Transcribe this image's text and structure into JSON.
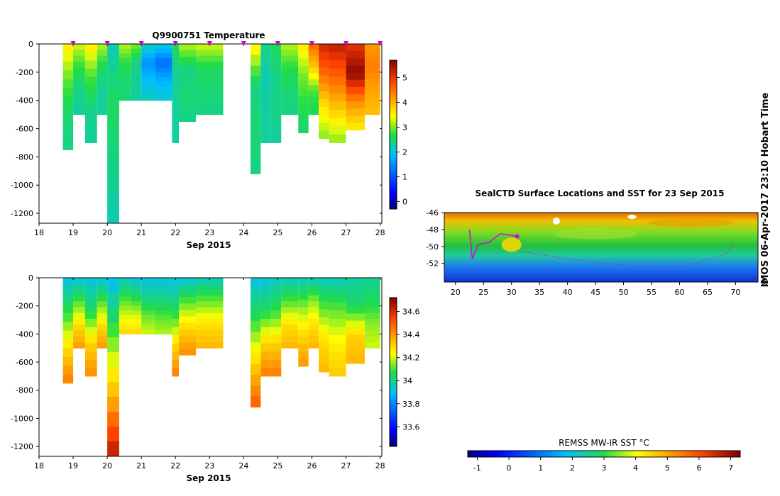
{
  "stamp": "IMOS 06-Apr-2017 23:10 Hobart Time",
  "stamp_symbol": "©",
  "chart_data": [
    {
      "id": "temperature",
      "type": "heatmap",
      "title": "Q9900751  Temperature",
      "xlabel": "Sep 2015",
      "ylabel": "",
      "xlim": [
        18,
        28.05
      ],
      "ylim": [
        -1270,
        0
      ],
      "x_ticks": [
        "18",
        "19",
        "20",
        "21",
        "22",
        "23",
        "24",
        "25",
        "26",
        "27",
        "28"
      ],
      "y_ticks": [
        "0",
        "-200",
        "-400",
        "-600",
        "-800",
        "-1000",
        "-1200"
      ],
      "colorbar": {
        "range": [
          -0.3,
          5.7
        ],
        "ticks": [
          "0",
          "1",
          "2",
          "3",
          "4",
          "5"
        ]
      },
      "profile_markers": [
        19,
        20,
        21,
        22,
        23,
        24,
        25,
        26,
        27,
        28
      ],
      "profiles": [
        {
          "x0": 18.7,
          "x1": 19.0,
          "depth": 750,
          "values": [
            3.6,
            2.9,
            2.5,
            2.4
          ]
        },
        {
          "x0": 19.0,
          "x1": 19.35,
          "depth": 500,
          "values": [
            3.3,
            2.7,
            2.4,
            2.3
          ]
        },
        {
          "x0": 19.35,
          "x1": 19.7,
          "depth": 700,
          "values": [
            3.6,
            2.8,
            2.4,
            2.3
          ]
        },
        {
          "x0": 19.7,
          "x1": 20.0,
          "depth": 500,
          "values": [
            3.2,
            2.6,
            2.3,
            2.3
          ]
        },
        {
          "x0": 20.0,
          "x1": 20.35,
          "depth": 1270,
          "values": [
            2.2,
            2.6,
            2.4,
            2.2
          ]
        },
        {
          "x0": 20.35,
          "x1": 20.7,
          "depth": 400,
          "values": [
            3.2,
            2.7,
            2.5,
            2.5
          ]
        },
        {
          "x0": 20.7,
          "x1": 21.0,
          "depth": 400,
          "values": [
            3.0,
            2.4,
            2.3,
            2.3
          ]
        },
        {
          "x0": 21.0,
          "x1": 21.4,
          "depth": 400,
          "values": [
            2.2,
            1.5,
            1.9,
            2.2
          ]
        },
        {
          "x0": 21.4,
          "x1": 21.9,
          "depth": 400,
          "values": [
            2.1,
            1.2,
            1.8,
            2.1
          ]
        },
        {
          "x0": 21.9,
          "x1": 22.1,
          "depth": 700,
          "values": [
            2.6,
            2.3,
            2.3,
            2.3
          ]
        },
        {
          "x0": 22.1,
          "x1": 22.6,
          "depth": 550,
          "values": [
            3.2,
            2.4,
            2.5,
            2.4
          ]
        },
        {
          "x0": 22.6,
          "x1": 23.4,
          "depth": 500,
          "values": [
            3.3,
            2.6,
            2.5,
            2.4
          ]
        },
        {
          "x0": 24.2,
          "x1": 24.5,
          "depth": 920,
          "values": [
            3.6,
            2.4,
            2.5,
            2.4
          ]
        },
        {
          "x0": 24.5,
          "x1": 24.8,
          "depth": 700,
          "values": [
            2.4,
            2.2,
            2.3,
            2.3
          ]
        },
        {
          "x0": 24.8,
          "x1": 25.1,
          "depth": 700,
          "values": [
            2.6,
            2.4,
            2.4,
            2.3
          ]
        },
        {
          "x0": 25.1,
          "x1": 25.6,
          "depth": 500,
          "values": [
            3.2,
            2.7,
            2.5,
            2.4
          ]
        },
        {
          "x0": 25.6,
          "x1": 25.9,
          "depth": 630,
          "values": [
            3.6,
            3.0,
            2.7,
            2.5
          ]
        },
        {
          "x0": 25.9,
          "x1": 26.2,
          "depth": 500,
          "values": [
            4.6,
            3.8,
            2.8,
            2.6
          ]
        },
        {
          "x0": 26.2,
          "x1": 26.5,
          "depth": 670,
          "values": [
            5.2,
            4.5,
            3.6,
            3.0
          ]
        },
        {
          "x0": 26.5,
          "x1": 27.0,
          "depth": 700,
          "values": [
            5.3,
            4.6,
            3.8,
            3.0
          ]
        },
        {
          "x0": 27.0,
          "x1": 27.55,
          "depth": 610,
          "values": [
            5.0,
            5.6,
            4.3,
            3.5
          ]
        },
        {
          "x0": 27.55,
          "x1": 28.0,
          "depth": 500,
          "values": [
            4.2,
            4.4,
            4.1,
            3.9
          ]
        }
      ]
    },
    {
      "id": "salinity",
      "type": "heatmap",
      "title": "",
      "xlabel": "Sep 2015",
      "ylabel": "",
      "xlim": [
        18,
        28.05
      ],
      "ylim": [
        -1270,
        0
      ],
      "x_ticks": [
        "18",
        "19",
        "20",
        "21",
        "22",
        "23",
        "24",
        "25",
        "26",
        "27",
        "28"
      ],
      "y_ticks": [
        "0",
        "-200",
        "-400",
        "-600",
        "-800",
        "-1000",
        "-1200"
      ],
      "colorbar": {
        "range": [
          33.43,
          34.72
        ],
        "ticks": [
          "33.6",
          "33.8",
          "34",
          "34.2",
          "34.4",
          "34.6"
        ]
      },
      "profiles": [
        {
          "x0": 18.7,
          "x1": 19.0,
          "depth": 750,
          "values": [
            33.92,
            34.08,
            34.28,
            34.45
          ]
        },
        {
          "x0": 19.0,
          "x1": 19.35,
          "depth": 500,
          "values": [
            33.92,
            34.1,
            34.28,
            34.4
          ]
        },
        {
          "x0": 19.35,
          "x1": 19.7,
          "depth": 700,
          "values": [
            33.92,
            34.05,
            34.3,
            34.42
          ]
        },
        {
          "x0": 19.7,
          "x1": 20.0,
          "depth": 500,
          "values": [
            33.92,
            34.1,
            34.28,
            34.4
          ]
        },
        {
          "x0": 20.0,
          "x1": 20.35,
          "depth": 1270,
          "values": [
            33.9,
            34.12,
            34.35,
            34.65
          ]
        },
        {
          "x0": 20.35,
          "x1": 20.7,
          "depth": 400,
          "values": [
            33.95,
            34.08,
            34.2,
            34.3
          ]
        },
        {
          "x0": 20.7,
          "x1": 21.0,
          "depth": 400,
          "values": [
            33.92,
            34.05,
            34.2,
            34.3
          ]
        },
        {
          "x0": 21.0,
          "x1": 21.4,
          "depth": 400,
          "values": [
            33.92,
            34.0,
            34.12,
            34.2
          ]
        },
        {
          "x0": 21.4,
          "x1": 21.9,
          "depth": 400,
          "values": [
            33.92,
            34.0,
            34.1,
            34.18
          ]
        },
        {
          "x0": 21.9,
          "x1": 22.1,
          "depth": 700,
          "values": [
            33.92,
            34.05,
            34.28,
            34.45
          ]
        },
        {
          "x0": 22.1,
          "x1": 22.6,
          "depth": 550,
          "values": [
            33.92,
            34.12,
            34.3,
            34.42
          ]
        },
        {
          "x0": 22.6,
          "x1": 23.4,
          "depth": 500,
          "values": [
            33.95,
            34.12,
            34.28,
            34.35
          ]
        },
        {
          "x0": 24.2,
          "x1": 24.5,
          "depth": 920,
          "values": [
            33.92,
            34.08,
            34.3,
            34.5
          ]
        },
        {
          "x0": 24.5,
          "x1": 24.8,
          "depth": 700,
          "values": [
            33.92,
            34.05,
            34.3,
            34.45
          ]
        },
        {
          "x0": 24.8,
          "x1": 25.1,
          "depth": 700,
          "values": [
            33.95,
            34.08,
            34.3,
            34.45
          ]
        },
        {
          "x0": 25.1,
          "x1": 25.6,
          "depth": 500,
          "values": [
            33.95,
            34.1,
            34.28,
            34.35
          ]
        },
        {
          "x0": 25.6,
          "x1": 25.9,
          "depth": 630,
          "values": [
            33.95,
            34.15,
            34.3,
            34.4
          ]
        },
        {
          "x0": 25.9,
          "x1": 26.2,
          "depth": 500,
          "values": [
            33.95,
            34.15,
            34.28,
            34.35
          ]
        },
        {
          "x0": 26.2,
          "x1": 26.5,
          "depth": 670,
          "values": [
            33.95,
            34.12,
            34.28,
            34.35
          ]
        },
        {
          "x0": 26.5,
          "x1": 27.0,
          "depth": 700,
          "values": [
            33.95,
            34.12,
            34.25,
            34.32
          ]
        },
        {
          "x0": 27.0,
          "x1": 27.55,
          "depth": 610,
          "values": [
            33.98,
            34.05,
            34.3,
            34.35
          ]
        },
        {
          "x0": 27.55,
          "x1": 28.0,
          "depth": 500,
          "values": [
            34.0,
            34.05,
            34.15,
            34.2
          ]
        }
      ]
    },
    {
      "id": "sst_map",
      "type": "heatmap",
      "title": "SealCTD Surface Locations and SST for 23 Sep 2015",
      "xlabel": "",
      "ylabel": "",
      "xlim": [
        18,
        74
      ],
      "ylim": [
        -54.2,
        -46
      ],
      "x_ticks": [
        "20",
        "25",
        "30",
        "35",
        "40",
        "45",
        "50",
        "55",
        "60",
        "65",
        "70"
      ],
      "y_ticks": [
        "-46",
        "-48",
        "-50",
        "-52"
      ],
      "track": [
        [
          22.5,
          -48
        ],
        [
          23,
          -51.5
        ],
        [
          24,
          -49.8
        ],
        [
          26,
          -49.5
        ],
        [
          28,
          -48.5
        ],
        [
          29,
          -48.6
        ],
        [
          31,
          -48.8
        ]
      ],
      "track_dotted": [
        [
          31,
          -50.5
        ],
        [
          40,
          -51.5
        ],
        [
          50,
          -52.2
        ],
        [
          60,
          -52.5
        ],
        [
          68,
          -51.0
        ],
        [
          70,
          -49.5
        ]
      ],
      "colorbar": {
        "title": "REMSS MW-IR SST °C",
        "range": [
          -1.3,
          7.3
        ],
        "ticks": [
          "-1",
          "0",
          "1",
          "2",
          "3",
          "4",
          "5",
          "6",
          "7"
        ]
      }
    }
  ]
}
